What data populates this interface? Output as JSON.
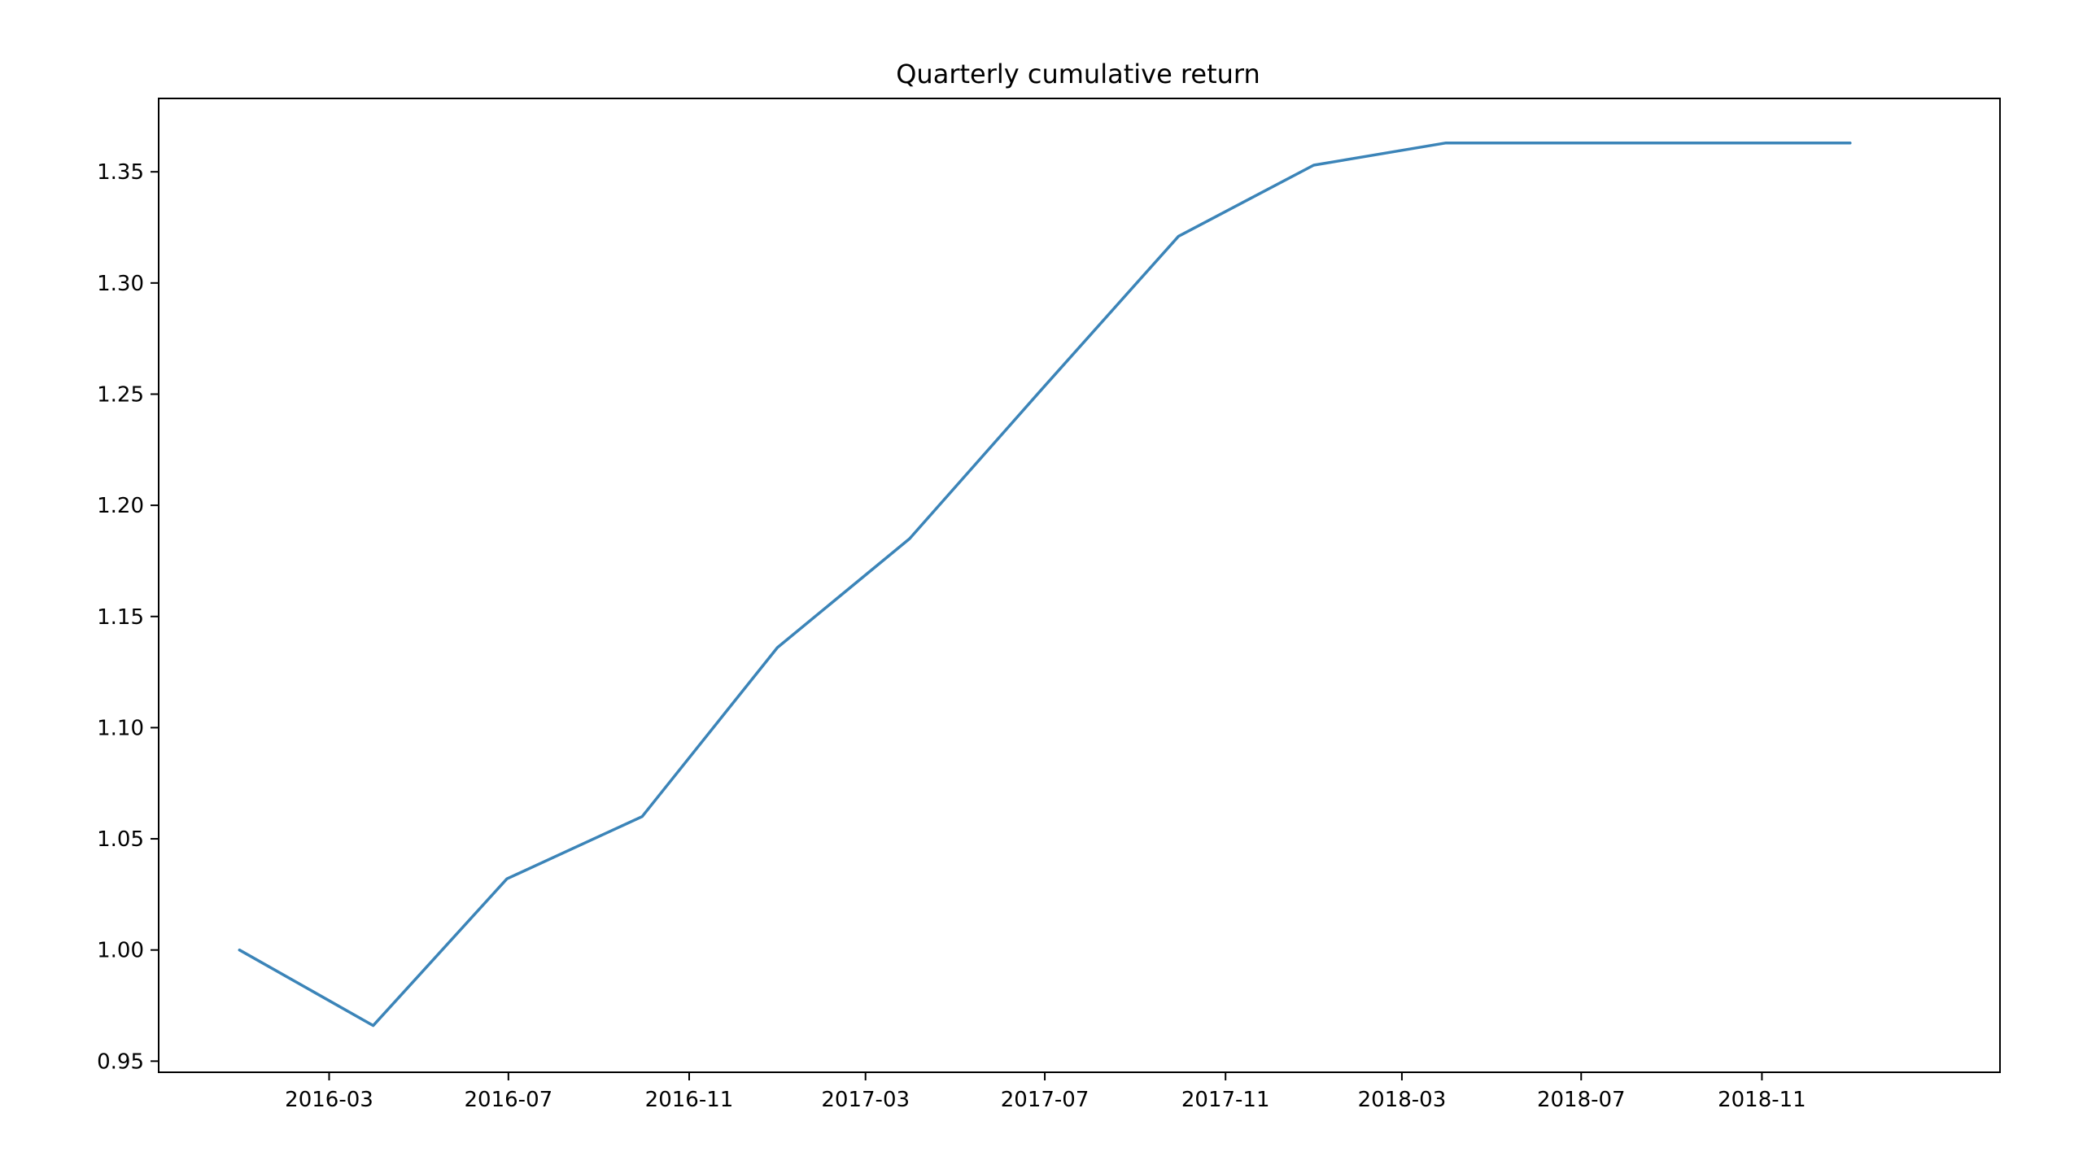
{
  "chart_data": {
    "type": "line",
    "title": "Quarterly cumulative return",
    "xlabel": "",
    "ylabel": "",
    "x_axis_kind": "date",
    "xlim": [
      "2015-11-06",
      "2019-04-12"
    ],
    "ylim": [
      0.945,
      1.383
    ],
    "x_ticks": [
      {
        "date": "2016-03-01",
        "label": "2016-03"
      },
      {
        "date": "2016-07-01",
        "label": "2016-07"
      },
      {
        "date": "2016-11-01",
        "label": "2016-11"
      },
      {
        "date": "2017-03-01",
        "label": "2017-03"
      },
      {
        "date": "2017-07-01",
        "label": "2017-07"
      },
      {
        "date": "2017-11-01",
        "label": "2017-11"
      },
      {
        "date": "2018-03-01",
        "label": "2018-03"
      },
      {
        "date": "2018-07-01",
        "label": "2018-07"
      },
      {
        "date": "2018-11-01",
        "label": "2018-11"
      }
    ],
    "y_ticks": [
      {
        "value": 0.95,
        "label": "0.95"
      },
      {
        "value": 1.0,
        "label": "1.00"
      },
      {
        "value": 1.05,
        "label": "1.05"
      },
      {
        "value": 1.1,
        "label": "1.10"
      },
      {
        "value": 1.15,
        "label": "1.15"
      },
      {
        "value": 1.2,
        "label": "1.20"
      },
      {
        "value": 1.25,
        "label": "1.25"
      },
      {
        "value": 1.3,
        "label": "1.30"
      },
      {
        "value": 1.35,
        "label": "1.35"
      }
    ],
    "grid": false,
    "legend": "none",
    "series": [
      {
        "color": "#3b84b8",
        "x": [
          "2015-12-31",
          "2016-03-31",
          "2016-06-30",
          "2016-09-30",
          "2016-12-31",
          "2017-03-31",
          "2017-06-30",
          "2017-09-30",
          "2017-12-31",
          "2018-03-31",
          "2018-06-30",
          "2018-09-30",
          "2018-12-31"
        ],
        "y": [
          1.0,
          0.966,
          1.032,
          1.06,
          1.136,
          1.185,
          1.253,
          1.321,
          1.353,
          1.363,
          1.363,
          1.363,
          1.363
        ]
      }
    ]
  }
}
